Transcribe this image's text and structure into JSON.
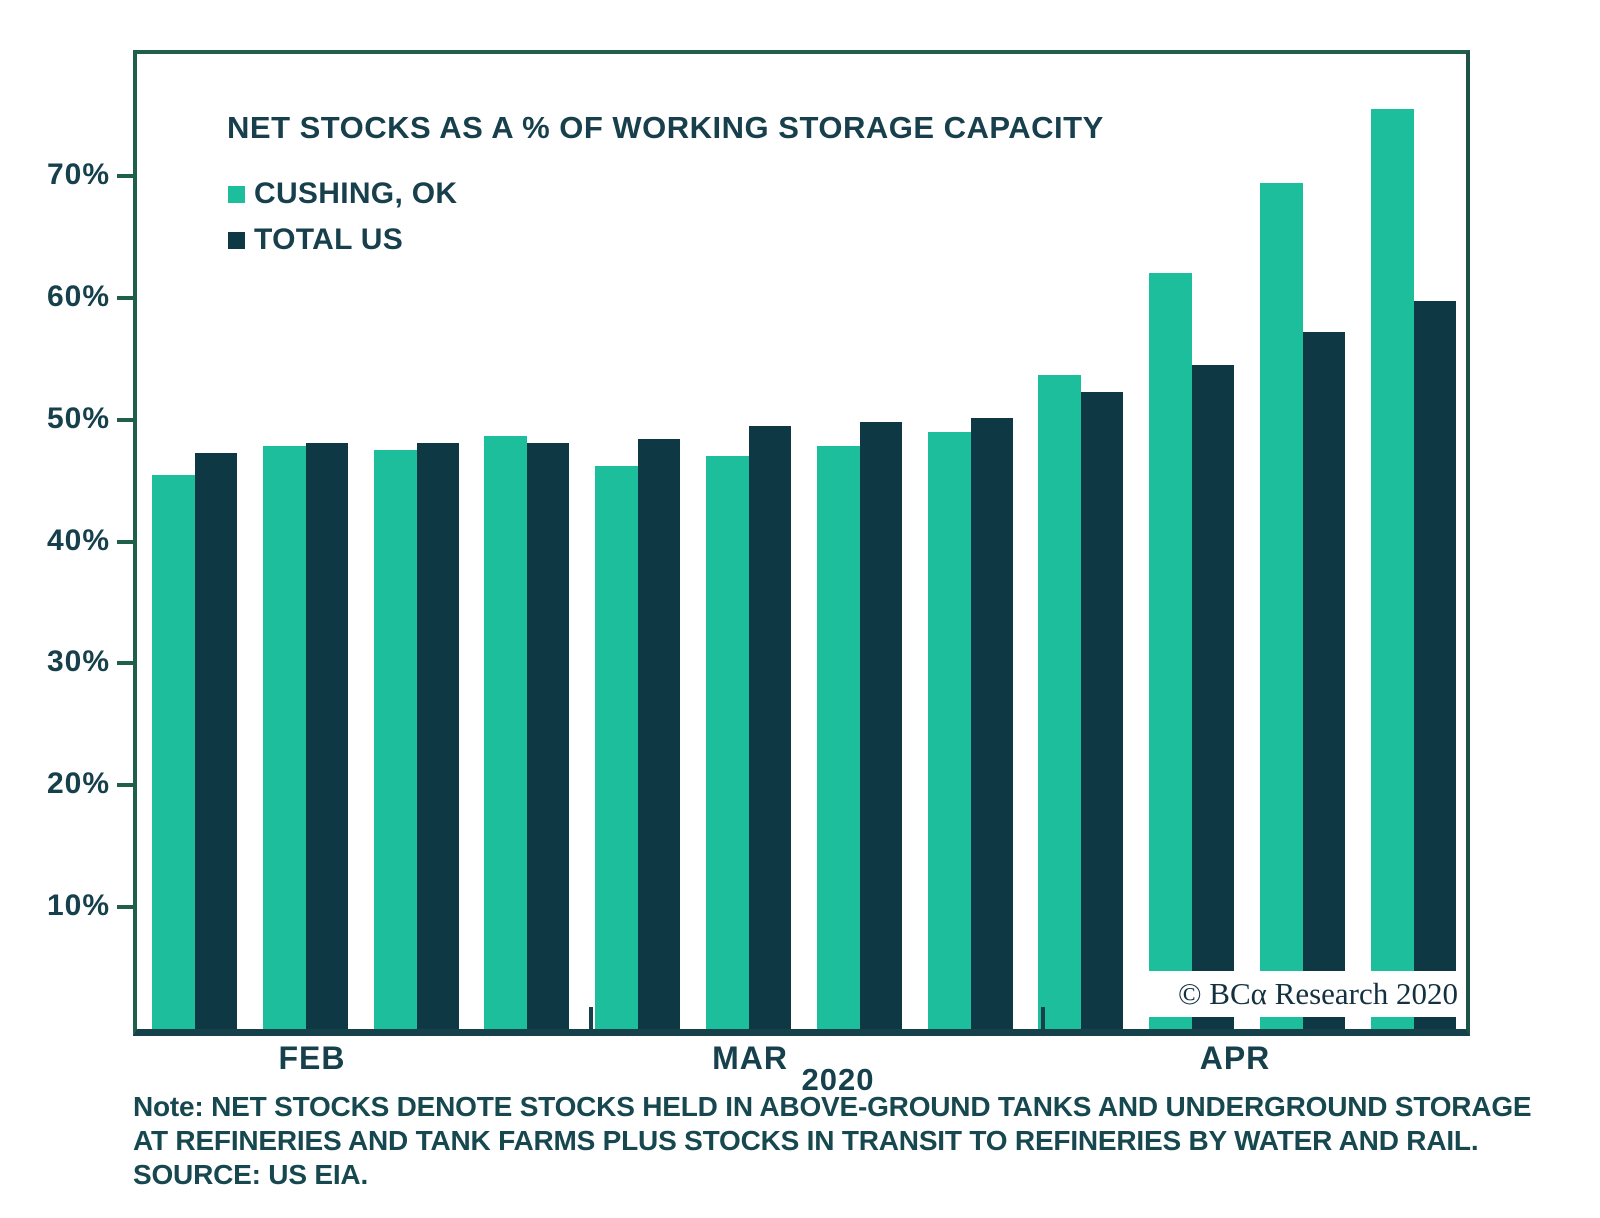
{
  "title": "NET STOCKS AS A % OF WORKING STORAGE CAPACITY",
  "watermark": {
    "text": "© BCα Research 2020"
  },
  "note": {
    "lines": [
      "Note: NET STOCKS DENOTE STOCKS HELD IN ABOVE-GROUND TANKS AND UNDERGROUND STORAGE",
      "AT REFINERIES AND TANK FARMS PLUS STOCKS IN TRANSIT TO REFINERIES BY WATER AND RAIL.",
      "SOURCE: US EIA."
    ]
  },
  "colors": {
    "cushing_green": "#1dbe9b",
    "total_us_dark": "#0e3944",
    "axis_green": "#20604a",
    "axis_bottom": "#16404a",
    "text_dark": "#16404c"
  },
  "chart_data": {
    "type": "bar",
    "title": "NET STOCKS AS A % OF WORKING STORAGE CAPACITY",
    "x_groups": [
      "FEB",
      "MAR",
      "APR"
    ],
    "x_year": "2020",
    "points_per_group": 4,
    "categories": [
      "FEB-1",
      "FEB-2",
      "FEB-3",
      "FEB-4",
      "MAR-1",
      "MAR-2",
      "MAR-3",
      "MAR-4",
      "APR-1",
      "APR-2",
      "APR-3",
      "APR-4"
    ],
    "series": [
      {
        "name": "CUSHING, OK",
        "color": "#1dbe9b",
        "values": [
          45.5,
          47.8,
          47.5,
          48.7,
          46.2,
          47.0,
          47.8,
          49.0,
          53.7,
          62.0,
          69.4,
          75.5
        ]
      },
      {
        "name": "TOTAL US",
        "color": "#0e3944",
        "values": [
          47.3,
          48.1,
          48.1,
          48.1,
          48.4,
          49.5,
          49.8,
          50.1,
          52.3,
          54.5,
          57.2,
          59.7
        ]
      }
    ],
    "ylim": [
      0,
      80
    ],
    "y_ticks": [
      10,
      20,
      30,
      40,
      50,
      60,
      70
    ],
    "y_tick_suffix": "%",
    "legend_position": "top-left",
    "grid": false
  }
}
